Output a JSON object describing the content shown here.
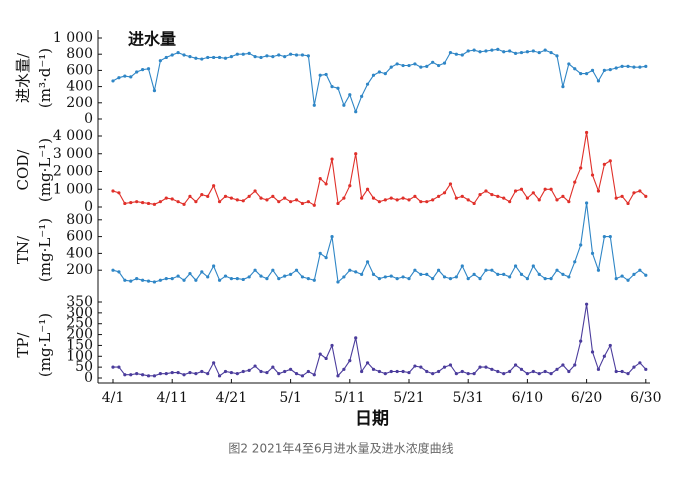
{
  "caption": "图2 2021年4至6月进水量及进水浓度曲线",
  "chart_data": [
    {
      "type": "line",
      "title": "进水量",
      "ylabel": [
        "进水量/",
        "(m³·d⁻¹)"
      ],
      "ylim": [
        0,
        1000
      ],
      "yticks": [
        0,
        200,
        400,
        600,
        800,
        {
          "value": 1000,
          "label": "1 000"
        }
      ],
      "series": [
        {
          "color": "#2f86c6",
          "values": [
            470,
            510,
            530,
            520,
            580,
            610,
            620,
            350,
            720,
            760,
            790,
            820,
            790,
            770,
            750,
            740,
            760,
            760,
            760,
            750,
            770,
            800,
            800,
            810,
            770,
            760,
            780,
            770,
            790,
            770,
            800,
            790,
            790,
            780,
            170,
            540,
            550,
            400,
            380,
            170,
            300,
            90,
            280,
            430,
            540,
            580,
            560,
            640,
            680,
            660,
            660,
            680,
            640,
            650,
            700,
            660,
            690,
            820,
            800,
            790,
            840,
            850,
            830,
            840,
            850,
            860,
            830,
            840,
            810,
            820,
            830,
            840,
            820,
            850,
            820,
            780,
            400,
            680,
            620,
            560,
            560,
            600,
            470,
            600,
            610,
            630,
            650,
            650,
            640,
            640,
            650
          ]
        }
      ]
    },
    {
      "type": "line",
      "ylabel": [
        "COD/",
        "(mg·L⁻¹)"
      ],
      "ylim": [
        0,
        4000
      ],
      "yticks": [
        0,
        {
          "value": 1000,
          "label": "1 000"
        },
        {
          "value": 2000,
          "label": "2 000"
        },
        {
          "value": 3000,
          "label": "3 000"
        },
        {
          "value": 4000,
          "label": "4 000"
        }
      ],
      "series": [
        {
          "color": "#e0302a",
          "values": [
            900,
            800,
            200,
            250,
            300,
            250,
            200,
            150,
            300,
            500,
            450,
            300,
            150,
            600,
            300,
            700,
            600,
            1200,
            300,
            600,
            500,
            400,
            350,
            600,
            900,
            500,
            400,
            600,
            300,
            500,
            300,
            400,
            200,
            300,
            100,
            1600,
            1300,
            2700,
            200,
            500,
            1200,
            3000,
            500,
            1000,
            500,
            300,
            400,
            500,
            400,
            500,
            400,
            600,
            300,
            300,
            400,
            600,
            800,
            1300,
            500,
            600,
            400,
            200,
            700,
            900,
            700,
            600,
            500,
            300,
            900,
            1000,
            500,
            800,
            400,
            1000,
            1000,
            400,
            600,
            300,
            1400,
            2200,
            4200,
            1800,
            900,
            2400,
            2600,
            500,
            600,
            200,
            800,
            900,
            600
          ]
        }
      ]
    },
    {
      "type": "line",
      "ylabel": [
        "TN/",
        "(mg·L⁻¹)"
      ],
      "ylim": [
        0,
        1000
      ],
      "yticks": [
        200,
        400,
        600,
        800
      ],
      "series": [
        {
          "color": "#2f86c6",
          "values": [
            200,
            180,
            80,
            70,
            100,
            80,
            70,
            60,
            80,
            100,
            100,
            130,
            80,
            160,
            80,
            180,
            120,
            250,
            80,
            130,
            100,
            100,
            90,
            120,
            200,
            130,
            100,
            200,
            100,
            130,
            150,
            200,
            120,
            100,
            80,
            400,
            350,
            600,
            60,
            120,
            200,
            180,
            150,
            300,
            150,
            100,
            120,
            130,
            100,
            120,
            100,
            200,
            150,
            150,
            100,
            200,
            120,
            100,
            120,
            250,
            100,
            150,
            100,
            200,
            200,
            150,
            150,
            120,
            250,
            150,
            100,
            250,
            150,
            100,
            100,
            200,
            150,
            120,
            300,
            500,
            1000,
            400,
            200,
            600,
            600,
            100,
            130,
            80,
            150,
            200,
            140
          ]
        }
      ]
    },
    {
      "type": "line",
      "ylabel": [
        "TP/",
        "(mg·L⁻¹)"
      ],
      "xlabel": "日期",
      "ylim": [
        0,
        350
      ],
      "yticks": [
        0,
        50,
        100,
        150,
        200,
        250,
        300,
        350
      ],
      "categories": [
        "4/1",
        null,
        null,
        null,
        null,
        null,
        null,
        null,
        null,
        null,
        "4/11",
        null,
        null,
        null,
        null,
        null,
        null,
        null,
        null,
        null,
        "4/21",
        null,
        null,
        null,
        null,
        null,
        null,
        null,
        null,
        null,
        "5/1",
        null,
        null,
        null,
        null,
        null,
        null,
        null,
        null,
        null,
        "5/11",
        null,
        null,
        null,
        null,
        null,
        null,
        null,
        null,
        null,
        "5/21",
        null,
        null,
        null,
        null,
        null,
        null,
        null,
        null,
        null,
        "5/31",
        null,
        null,
        null,
        null,
        null,
        null,
        null,
        null,
        null,
        "6/10",
        null,
        null,
        null,
        null,
        null,
        null,
        null,
        null,
        null,
        "6/20",
        null,
        null,
        null,
        null,
        null,
        null,
        null,
        null,
        null,
        "6/30"
      ],
      "series": [
        {
          "color": "#4b3c9c",
          "values": [
            50,
            50,
            15,
            15,
            20,
            15,
            10,
            10,
            20,
            20,
            25,
            25,
            15,
            25,
            20,
            30,
            20,
            70,
            10,
            30,
            25,
            20,
            30,
            35,
            55,
            30,
            25,
            50,
            20,
            30,
            40,
            20,
            10,
            30,
            15,
            110,
            90,
            150,
            10,
            40,
            80,
            185,
            30,
            70,
            40,
            30,
            20,
            30,
            30,
            30,
            25,
            55,
            50,
            30,
            20,
            30,
            50,
            60,
            20,
            30,
            20,
            20,
            50,
            50,
            40,
            30,
            20,
            30,
            60,
            40,
            20,
            30,
            20,
            30,
            20,
            40,
            60,
            30,
            60,
            170,
            340,
            120,
            40,
            100,
            150,
            30,
            30,
            20,
            50,
            70,
            40
          ]
        }
      ]
    }
  ]
}
